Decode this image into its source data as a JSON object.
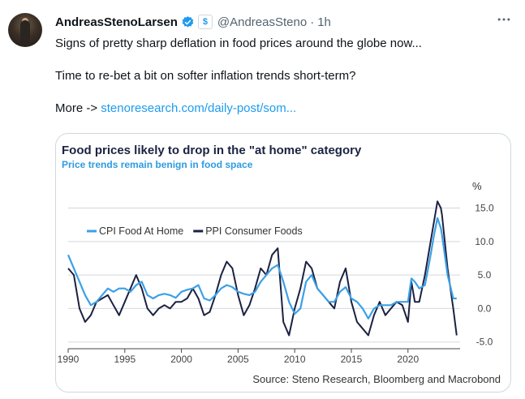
{
  "tweet": {
    "author_name": "AndreasStenoLarsen",
    "handle": "@AndreasSteno",
    "separator": "·",
    "time": "1h",
    "affiliate_badge": "$",
    "line1": "Signs of pretty sharp deflation in food prices around the globe now...",
    "line2": "Time to re-bet a bit on softer inflation trends short-term?",
    "more_prefix": "More -> ",
    "link_text": "stenoresearch.com/daily-post/som..."
  },
  "colors": {
    "accent": "#1d9bf0",
    "cpi": "#3ca0e6",
    "ppi": "#1b2142",
    "subtitle": "#2e9be0"
  },
  "icons": {
    "verified": "verified-badge-icon",
    "affiliate": "affiliate-badge-icon",
    "more": "more-icon"
  },
  "chart_data": {
    "type": "line",
    "title": "Food prices likely to drop in the \"at home\" category",
    "subtitle": "Price trends remain benign in food space",
    "unit": "%",
    "source": "Source: Steno Research, Bloomberg and Macrobond",
    "xlim": [
      1990,
      2024.6
    ],
    "ylim": [
      -6,
      17
    ],
    "x_ticks": [
      "1990",
      "1995",
      "2000",
      "2005",
      "2010",
      "2015",
      "2020"
    ],
    "y_ticks": [
      "15.0",
      "10.0",
      "5.0",
      "0.0",
      "-5.0"
    ],
    "legend": [
      "CPI Food At Home",
      "PPI Consumer Foods"
    ],
    "legend_position": "top-left",
    "grid": "horizontal",
    "series": [
      {
        "name": "CPI Food At Home",
        "x": [
          1990,
          1990.5,
          1991,
          1991.5,
          1992,
          1992.5,
          1993,
          1993.5,
          1994,
          1994.5,
          1995,
          1995.5,
          1996,
          1996.5,
          1997,
          1997.5,
          1998,
          1998.5,
          1999,
          1999.5,
          2000,
          2000.5,
          2001,
          2001.5,
          2002,
          2002.5,
          2003,
          2003.5,
          2004,
          2004.5,
          2005,
          2005.5,
          2006,
          2006.5,
          2007,
          2007.5,
          2008,
          2008.5,
          2009,
          2009.5,
          2010,
          2010.5,
          2011,
          2011.5,
          2012,
          2012.5,
          2013,
          2013.5,
          2014,
          2014.5,
          2015,
          2015.5,
          2016,
          2016.5,
          2017,
          2017.5,
          2018,
          2018.5,
          2019,
          2019.5,
          2020,
          2020.3,
          2020.6,
          2021,
          2021.5,
          2022,
          2022.3,
          2022.6,
          2022.9,
          2023,
          2023.5,
          2024,
          2024.3
        ],
        "values": [
          8,
          6,
          4,
          2,
          0.5,
          1,
          2,
          3,
          2.5,
          3,
          3,
          2.5,
          3.5,
          4,
          2,
          1.5,
          2,
          2.2,
          2,
          1.6,
          2.5,
          2.8,
          3,
          3.5,
          1.5,
          1.2,
          2,
          3,
          3.5,
          3.2,
          2.5,
          2.2,
          2,
          2.5,
          4,
          5,
          6,
          6.5,
          4,
          1,
          -0.8,
          0,
          4,
          5,
          3,
          2,
          1,
          1,
          2.5,
          3.2,
          1.5,
          1,
          0,
          -1.5,
          0,
          0.5,
          0.5,
          0.5,
          1,
          1,
          1,
          4.5,
          4,
          3,
          3.5,
          8,
          11,
          13.5,
          12,
          11,
          5,
          1.5,
          1.5
        ]
      },
      {
        "name": "PPI Consumer Foods",
        "x": [
          1990,
          1990.5,
          1991,
          1991.5,
          1992,
          1992.5,
          1993,
          1993.5,
          1994,
          1994.5,
          1995,
          1995.5,
          1996,
          1996.5,
          1997,
          1997.5,
          1998,
          1998.5,
          1999,
          1999.5,
          2000,
          2000.5,
          2001,
          2001.5,
          2002,
          2002.5,
          2003,
          2003.5,
          2004,
          2004.5,
          2005,
          2005.5,
          2006,
          2006.5,
          2007,
          2007.5,
          2008,
          2008.5,
          2009,
          2009.5,
          2010,
          2010.5,
          2011,
          2011.5,
          2012,
          2012.5,
          2013,
          2013.5,
          2014,
          2014.5,
          2015,
          2015.5,
          2016,
          2016.5,
          2017,
          2017.5,
          2018,
          2018.5,
          2019,
          2019.5,
          2020,
          2020.3,
          2020.6,
          2021,
          2021.5,
          2022,
          2022.3,
          2022.6,
          2022.9,
          2023,
          2023.5,
          2024,
          2024.3
        ],
        "values": [
          6,
          5,
          0,
          -2,
          -1,
          1,
          1.5,
          2,
          0.5,
          -1,
          1,
          3,
          5,
          3,
          0,
          -1,
          0,
          0.5,
          0,
          1,
          1,
          1.5,
          3,
          1.5,
          -1,
          -0.5,
          2,
          5,
          7,
          6,
          2,
          -1,
          0.5,
          3,
          6,
          5,
          8,
          9,
          -2,
          -4,
          0,
          3,
          7,
          6,
          3,
          2,
          1,
          0,
          4,
          6,
          1,
          -2,
          -3,
          -4,
          -1,
          1,
          -1,
          0,
          1,
          0.5,
          -2,
          4,
          1,
          1,
          5,
          10,
          13,
          16,
          15,
          14,
          6,
          0,
          -4
        ]
      }
    ]
  }
}
